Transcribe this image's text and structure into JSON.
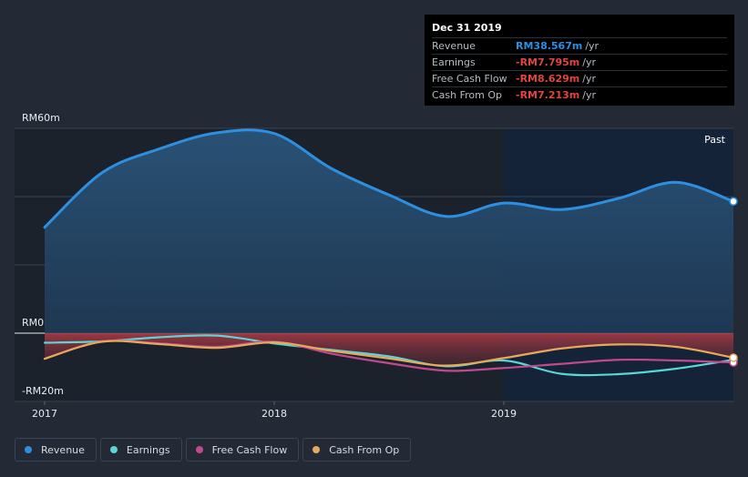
{
  "chart_data": {
    "type": "area",
    "ylim": [
      -20,
      60
    ],
    "y_ticks": [
      {
        "value": 60,
        "label": "RM60m"
      },
      {
        "value": 0,
        "label": "RM0"
      },
      {
        "value": -20,
        "label": "-RM20m"
      }
    ],
    "x_ticks": [
      {
        "value": 2017,
        "label": "2017"
      },
      {
        "value": 2018,
        "label": "2018"
      },
      {
        "value": 2019,
        "label": "2019"
      }
    ],
    "xlim": [
      2017,
      2020.0
    ],
    "past_label": "Past",
    "past_start": 2019.0,
    "series": [
      {
        "name": "Revenue",
        "color": "#2d8fe0",
        "x": [
          2017.0,
          2017.25,
          2017.5,
          2017.75,
          2018.0,
          2018.25,
          2018.5,
          2018.75,
          2019.0,
          2019.25,
          2019.5,
          2019.75,
          2020.0
        ],
        "values": [
          31,
          47,
          54,
          58.7,
          58.5,
          48.2,
          40.5,
          34.2,
          38.1,
          36.2,
          39.5,
          44.2,
          38.6
        ]
      },
      {
        "name": "Earnings",
        "color": "#5ad6d6",
        "x": [
          2017.0,
          2017.25,
          2017.5,
          2017.75,
          2018.0,
          2018.25,
          2018.5,
          2018.75,
          2019.0,
          2019.25,
          2019.5,
          2019.75,
          2020.0
        ],
        "values": [
          -2.8,
          -2.4,
          -1.2,
          -0.7,
          -3.0,
          -4.9,
          -6.8,
          -9.7,
          -8.0,
          -11.9,
          -12.0,
          -10.4,
          -7.8
        ]
      },
      {
        "name": "Free Cash Flow",
        "color": "#c2498f",
        "x": [
          2017.0,
          2017.25,
          2017.5,
          2017.75,
          2018.0,
          2018.25,
          2018.5,
          2018.75,
          2019.0,
          2019.25,
          2019.5,
          2019.75,
          2020.0
        ],
        "values": [
          -7.5,
          -2.4,
          -3.0,
          -4.0,
          -2.5,
          -6.0,
          -8.8,
          -11.0,
          -10.2,
          -9.0,
          -7.8,
          -8.0,
          -8.6
        ]
      },
      {
        "name": "Cash From Op",
        "color": "#e8a95a",
        "x": [
          2017.0,
          2017.25,
          2017.5,
          2017.75,
          2018.0,
          2018.25,
          2018.5,
          2018.75,
          2019.0,
          2019.25,
          2019.5,
          2019.75,
          2020.0
        ],
        "values": [
          -7.5,
          -2.5,
          -3.2,
          -4.3,
          -2.7,
          -5.2,
          -7.4,
          -9.5,
          -7.3,
          -4.5,
          -3.3,
          -4.0,
          -7.2
        ]
      }
    ]
  },
  "tooltip": {
    "title": "Dec 31 2019",
    "rows": [
      {
        "name": "Revenue",
        "value": "RM38.567m",
        "unit": "/yr",
        "color": "#2d8fe0"
      },
      {
        "name": "Earnings",
        "value": "-RM7.795m",
        "unit": "/yr",
        "color": "#e0463f"
      },
      {
        "name": "Free Cash Flow",
        "value": "-RM8.629m",
        "unit": "/yr",
        "color": "#e0463f"
      },
      {
        "name": "Cash From Op",
        "value": "-RM7.213m",
        "unit": "/yr",
        "color": "#e0463f"
      }
    ]
  },
  "legend": [
    {
      "label": "Revenue",
      "color": "#2d8fe0"
    },
    {
      "label": "Earnings",
      "color": "#5ad6d6"
    },
    {
      "label": "Free Cash Flow",
      "color": "#c2498f"
    },
    {
      "label": "Cash From Op",
      "color": "#e8a95a"
    }
  ]
}
